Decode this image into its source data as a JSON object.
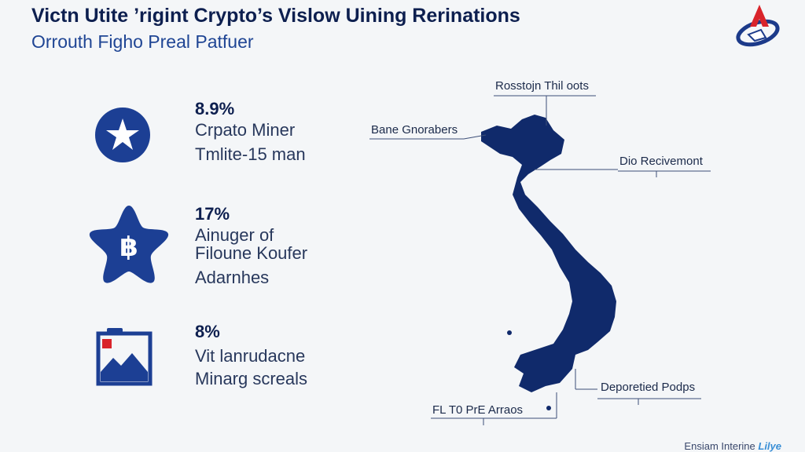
{
  "header": {
    "title": "Victn Utite ’rigint Crypto’s Vislow Uining Rerinations",
    "subtitle": "Orrouth Figho Preal Patfuer"
  },
  "logo": {
    "icon": "red-triangle-over-globe-logo",
    "accent": "#d9242b",
    "ring": "#1c3a8a"
  },
  "stats": [
    {
      "percent": "8.9%",
      "lines": [
        "Crpato Miner",
        "Tmlite-15 man"
      ],
      "icon": "star-in-circle-icon"
    },
    {
      "percent": "17%",
      "lines": [
        "Ainuger of",
        "Filoune Koufer",
        "Adarnhes"
      ],
      "icon": "coin-star-icon"
    },
    {
      "percent": "8%",
      "lines": [
        "Vit lanrudacne",
        "Minarg screals"
      ],
      "icon": "mountain-frame-icon"
    }
  ],
  "map": {
    "region": "vietnam-silhouette",
    "fill": "#102a6b",
    "callouts": [
      {
        "label": "Rosstojn Thil oots"
      },
      {
        "label": "Bane Gnorabers"
      },
      {
        "label": "Dio Recivemont"
      },
      {
        "label": "Deporetied Podps"
      },
      {
        "label": "FL T0 PrE Arraos"
      }
    ]
  },
  "footer": {
    "text": "Ensiam Interine",
    "brand": "Lilye"
  },
  "colors": {
    "primary": "#1c3f94",
    "dark": "#0d1f4f",
    "background": "#f4f6f8"
  }
}
